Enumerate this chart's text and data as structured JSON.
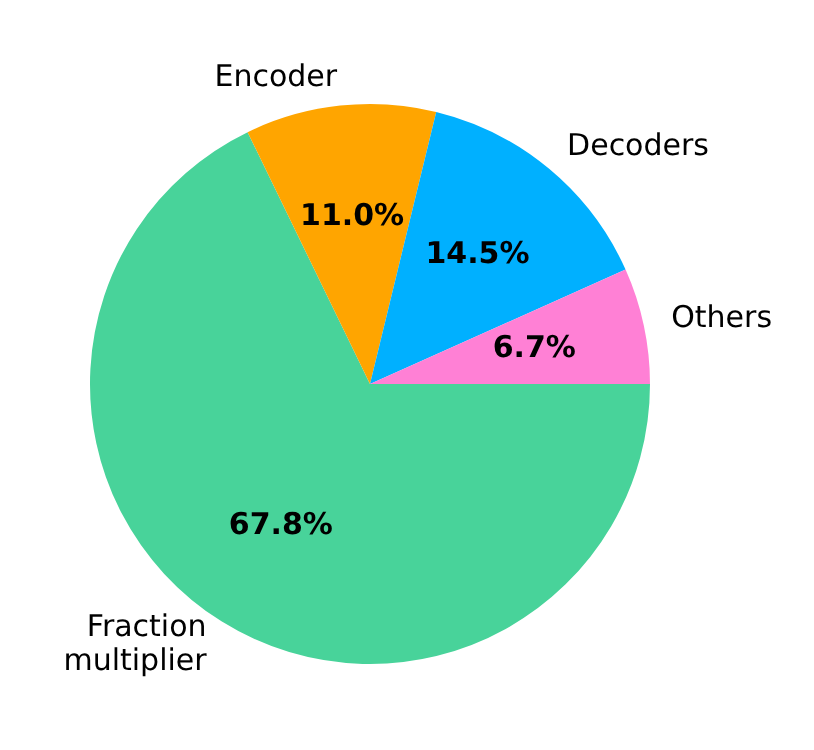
{
  "chart_data": {
    "type": "pie",
    "categories": [
      "Fraction\nmultiplier",
      "Encoder",
      "Decoders",
      "Others"
    ],
    "values": [
      67.8,
      11.0,
      14.5,
      6.7
    ],
    "colors": [
      "#48d39a",
      "#ffa500",
      "#00b0ff",
      "#ff80d5"
    ],
    "value_labels": [
      "67.8%",
      "11.0%",
      "14.5%",
      "6.7%"
    ],
    "legend": false
  }
}
